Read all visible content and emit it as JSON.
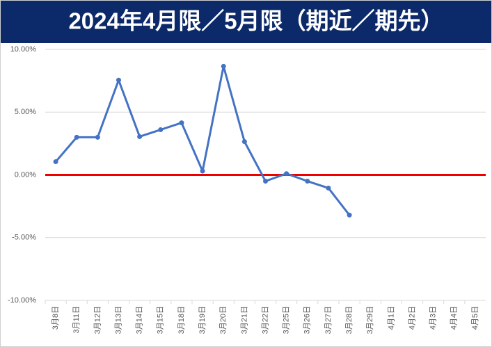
{
  "chart_data": {
    "type": "line",
    "title": "2024年4月限／5月限（期近／期先）",
    "categories": [
      "3月8日",
      "3月11日",
      "3月12日",
      "3月13日",
      "3月14日",
      "3月15日",
      "3月18日",
      "3月19日",
      "3月20日",
      "3月21日",
      "3月22日",
      "3月25日",
      "3月26日",
      "3月27日",
      "3月28日",
      "3月29日",
      "4月1日",
      "4月2日",
      "4月3日",
      "4月4日",
      "4月5日"
    ],
    "series": [
      {
        "color": "#4472c4",
        "values": [
          1.05,
          3.0,
          3.0,
          7.55,
          3.05,
          3.6,
          4.15,
          0.3,
          8.65,
          2.65,
          -0.5,
          0.1,
          -0.5,
          -1.05,
          -3.2,
          null,
          null,
          null,
          null,
          null,
          null
        ]
      }
    ],
    "ylim": [
      -10,
      10
    ],
    "yticks": [
      {
        "value": -10,
        "label": "-10.00%"
      },
      {
        "value": -5,
        "label": "-5.00%"
      },
      {
        "value": 0,
        "label": "0.00%"
      },
      {
        "value": 5,
        "label": "5.00%"
      },
      {
        "value": 10,
        "label": "10.00%"
      }
    ],
    "grid": true,
    "reference_line": {
      "value": 0,
      "color": "#ee0000"
    }
  }
}
